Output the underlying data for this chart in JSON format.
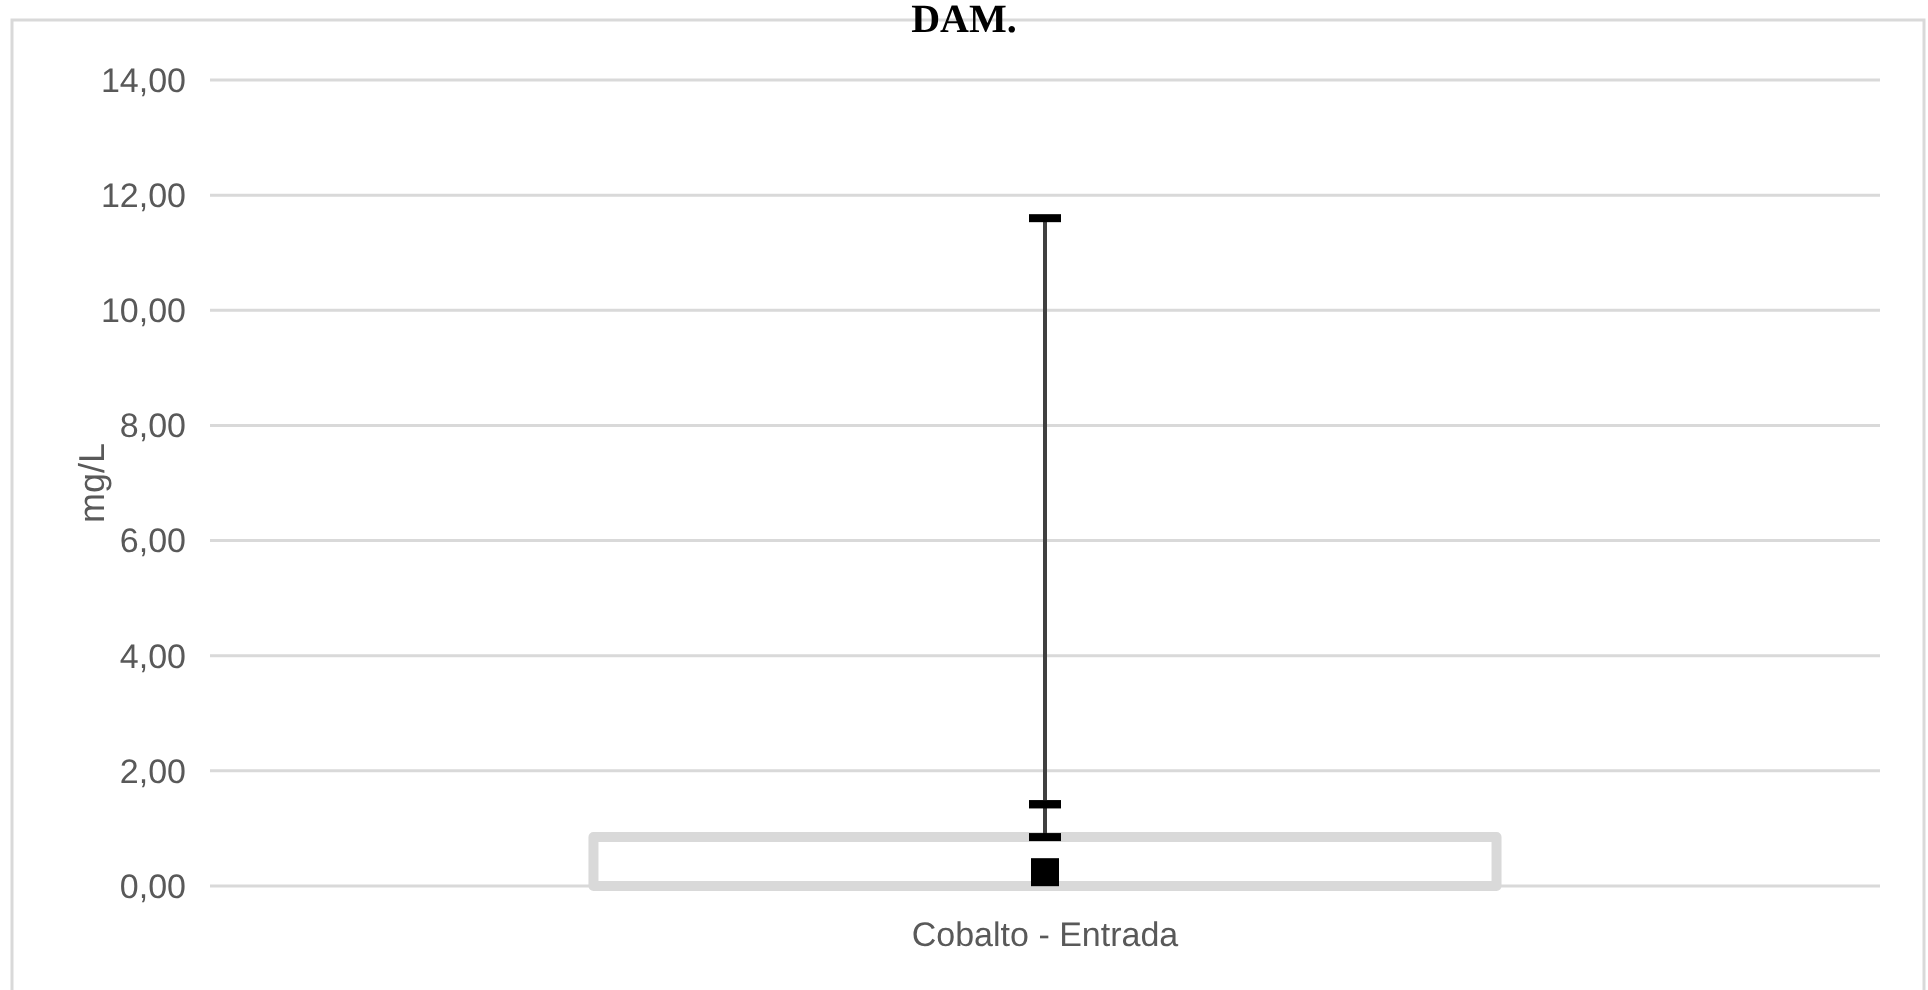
{
  "chart_data": {
    "type": "bar",
    "title": "DAM.",
    "ylabel": "mg/L",
    "categories": [
      "Cobalto - Entrada"
    ],
    "series": [
      {
        "color": "#d9d9d9",
        "values": [
          0.85
        ],
        "errors": [
          [
            0.85,
            1.42
          ]
        ]
      },
      {
        "type": "scatter",
        "color": "#000000",
        "marker": "square",
        "values": [
          0.24
        ],
        "errors": [
          [
            1.42,
            11.6
          ]
        ]
      }
    ],
    "ylim": [
      0,
      14
    ],
    "yticks": [
      {
        "value": 0,
        "label": "0,00"
      },
      {
        "value": 2,
        "label": "2,00"
      },
      {
        "value": 4,
        "label": "4,00"
      },
      {
        "value": 6,
        "label": "6,00"
      },
      {
        "value": 8,
        "label": "8,00"
      },
      {
        "value": 10,
        "label": "10,00"
      },
      {
        "value": 12,
        "label": "12,00"
      },
      {
        "value": 14,
        "label": "14,00"
      }
    ],
    "grid": "y"
  }
}
